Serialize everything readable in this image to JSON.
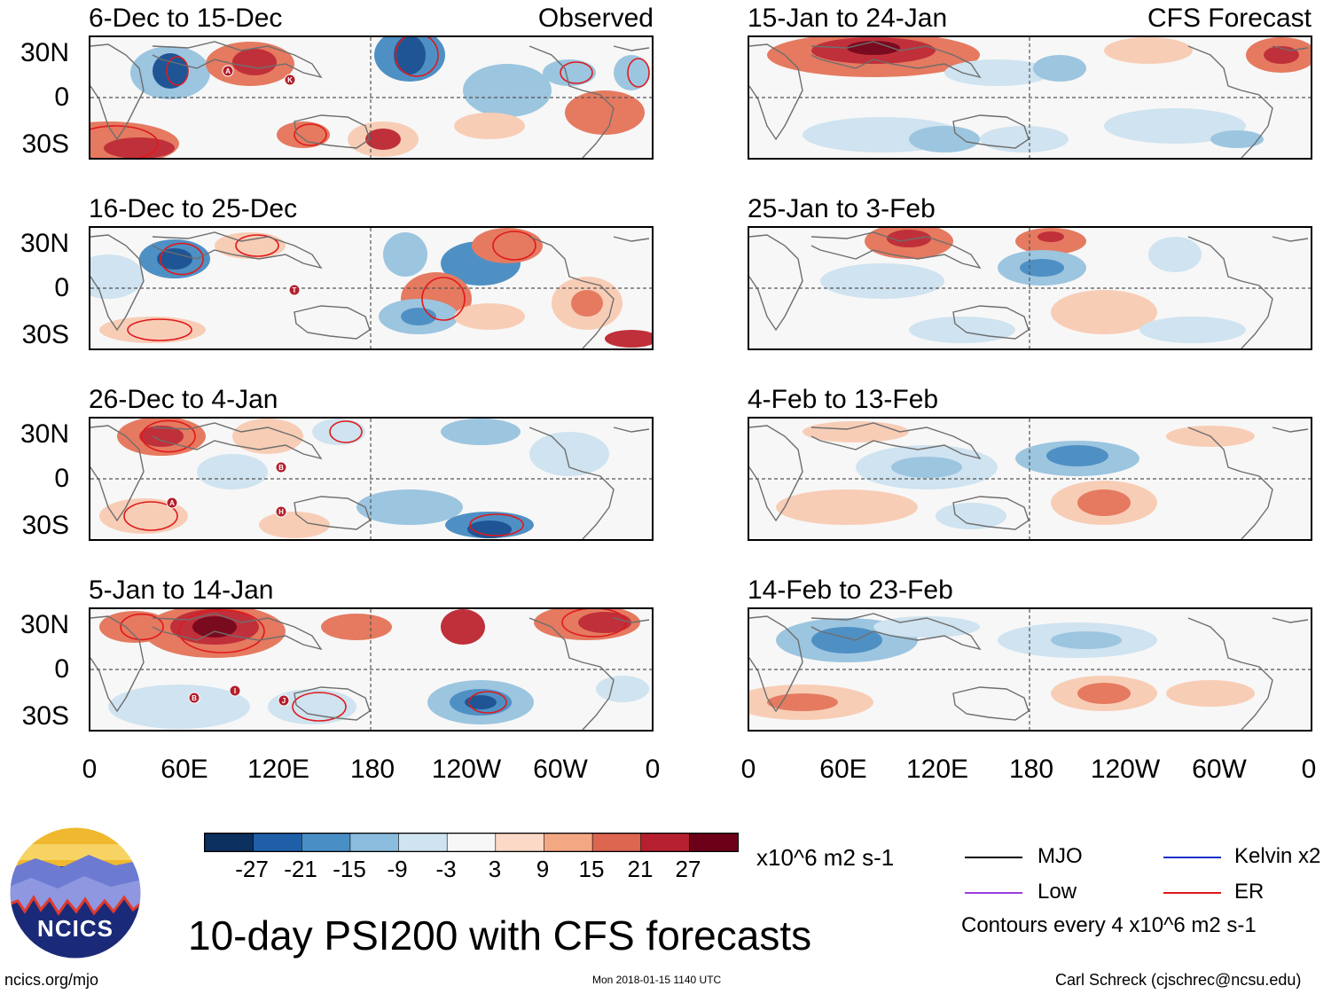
{
  "observed_tag": "Observed",
  "forecast_tag": "CFS Forecast",
  "panels_left": [
    {
      "title": "6-Dec to 15-Dec"
    },
    {
      "title": "16-Dec to 25-Dec"
    },
    {
      "title": "26-Dec to 4-Jan"
    },
    {
      "title": "5-Jan to 14-Jan"
    }
  ],
  "panels_right": [
    {
      "title": "15-Jan to 24-Jan"
    },
    {
      "title": "25-Jan to 3-Feb"
    },
    {
      "title": "4-Feb to 13-Feb"
    },
    {
      "title": "14-Feb to 23-Feb"
    }
  ],
  "lat_labels": [
    "30N",
    "0",
    "30S"
  ],
  "lon_labels": [
    "0",
    "60E",
    "120E",
    "180",
    "120W",
    "60W",
    "0"
  ],
  "colorbar": {
    "colors": [
      "#0b2f5f",
      "#1f5fa8",
      "#4a8ec6",
      "#8bbcdd",
      "#cfe3f0",
      "#f7f7f7",
      "#fbd9c6",
      "#f3a783",
      "#dc6650",
      "#b61f2e",
      "#6b0018"
    ],
    "labels": [
      "-27",
      "-21",
      "-15",
      "-9",
      "-3",
      "3",
      "9",
      "15",
      "21",
      "27"
    ],
    "units": "x10^6 m2 s-1"
  },
  "legend": {
    "items": [
      {
        "label": "MJO",
        "color": "#000000"
      },
      {
        "label": "Kelvin x2",
        "color": "#1a33cc"
      },
      {
        "label": "Low",
        "color": "#9a3de0"
      },
      {
        "label": "ER",
        "color": "#e0191b"
      }
    ],
    "note": "Contours every 4 x10^6 m2 s-1"
  },
  "main_title": "10-day PSI200 with CFS forecasts",
  "logo_text": "NCICS",
  "footer": {
    "left": "ncics.org/mjo",
    "center": "Mon 2018-01-15 1140 UTC",
    "right": "Carl Schreck (cjschrec@ncsu.edu)"
  },
  "storms": [
    {
      "panel": 0,
      "letter": "A"
    },
    {
      "panel": 0,
      "letter": "K"
    },
    {
      "panel": 1,
      "letter": "T"
    },
    {
      "panel": 2,
      "letter": "B"
    },
    {
      "panel": 2,
      "letter": "A"
    },
    {
      "panel": 2,
      "letter": "H"
    },
    {
      "panel": 3,
      "letter": "B"
    },
    {
      "panel": 3,
      "letter": "I"
    },
    {
      "panel": 3,
      "letter": "J"
    }
  ]
}
